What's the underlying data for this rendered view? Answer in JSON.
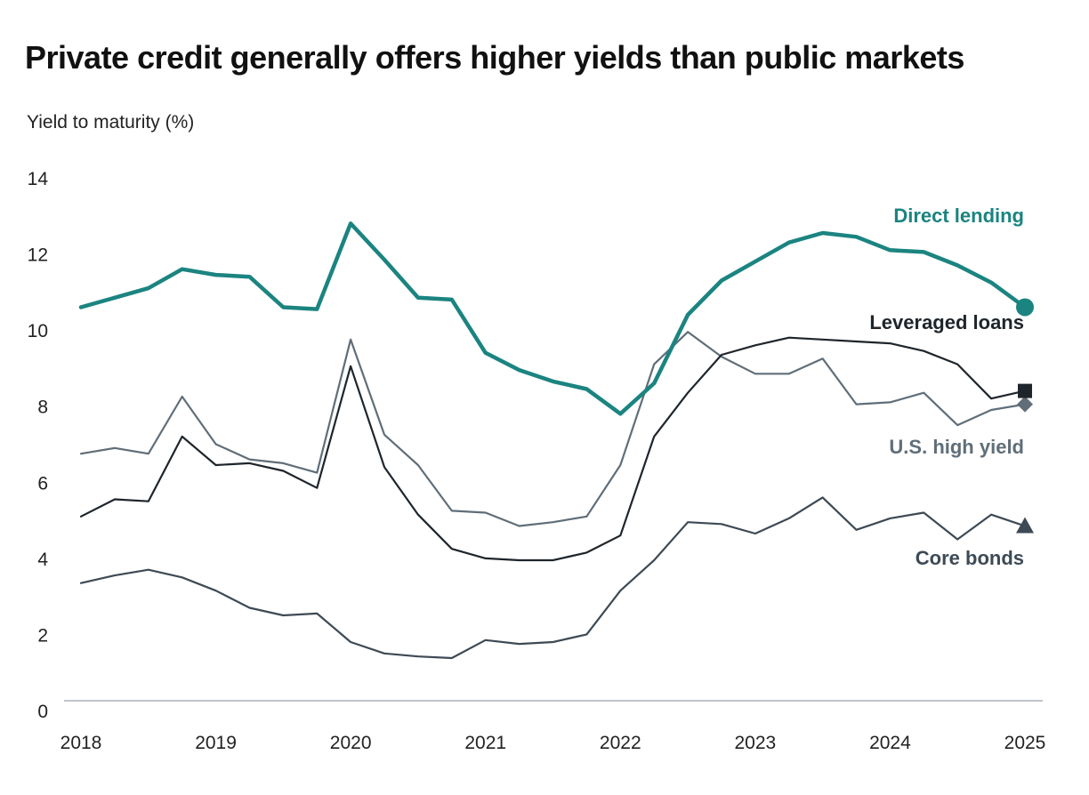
{
  "chart_data": {
    "type": "line",
    "title": "Private credit generally offers higher yields than public markets",
    "ylabel": "Yield to maturity (%)",
    "xlabel": "",
    "ylim": [
      0,
      14
    ],
    "yticks": [
      "0",
      "2",
      "4",
      "6",
      "8",
      "10",
      "12",
      "14"
    ],
    "xlim": [
      2018,
      2025
    ],
    "xticks": [
      "2018",
      "2019",
      "2020",
      "2021",
      "2022",
      "2023",
      "2024",
      "2025"
    ],
    "x": [
      2018,
      2018.25,
      2018.5,
      2018.75,
      2019,
      2019.25,
      2019.5,
      2019.75,
      2020,
      2020.25,
      2020.5,
      2020.75,
      2021,
      2021.25,
      2021.5,
      2021.75,
      2022,
      2022.25,
      2022.5,
      2022.75,
      2023,
      2023.25,
      2023.5,
      2023.75,
      2024,
      2024.25,
      2024.5,
      2024.75,
      2025
    ],
    "series": [
      {
        "name": "Direct lending",
        "color": "#1b8480",
        "marker": "circle",
        "values": [
          10.6,
          10.85,
          11.1,
          11.6,
          11.45,
          11.4,
          10.6,
          10.55,
          12.8,
          11.85,
          10.85,
          10.8,
          9.4,
          8.95,
          8.65,
          8.45,
          7.8,
          8.6,
          10.4,
          11.3,
          11.8,
          12.3,
          12.55,
          12.45,
          12.1,
          12.05,
          11.7,
          11.25,
          10.6
        ]
      },
      {
        "name": "Leveraged loans",
        "color": "#1e252b",
        "marker": "square",
        "values": [
          5.1,
          5.55,
          5.5,
          7.2,
          6.45,
          6.5,
          6.3,
          5.85,
          9.05,
          6.4,
          5.15,
          4.25,
          4.0,
          3.95,
          3.95,
          4.15,
          4.6,
          7.2,
          8.35,
          9.35,
          9.6,
          9.8,
          9.75,
          9.7,
          9.65,
          9.45,
          9.1,
          8.2,
          8.4
        ]
      },
      {
        "name": "U.S. high yield",
        "color": "#5f6e79",
        "marker": "diamond",
        "values": [
          6.75,
          6.9,
          6.75,
          8.25,
          7.0,
          6.6,
          6.5,
          6.25,
          9.75,
          7.25,
          6.45,
          5.25,
          5.2,
          4.85,
          4.95,
          5.1,
          6.45,
          9.1,
          9.95,
          9.3,
          8.85,
          8.85,
          9.25,
          8.05,
          8.1,
          8.35,
          7.5,
          7.9,
          8.05
        ]
      },
      {
        "name": "Core bonds",
        "color": "#3d4a55",
        "marker": "triangle",
        "values": [
          3.35,
          3.55,
          3.7,
          3.5,
          3.15,
          2.7,
          2.5,
          2.55,
          1.8,
          1.5,
          1.42,
          1.38,
          1.85,
          1.75,
          1.8,
          2.0,
          3.15,
          3.95,
          4.95,
          4.9,
          4.65,
          5.05,
          5.6,
          4.75,
          5.05,
          5.2,
          4.5,
          5.15,
          4.85
        ]
      }
    ]
  }
}
